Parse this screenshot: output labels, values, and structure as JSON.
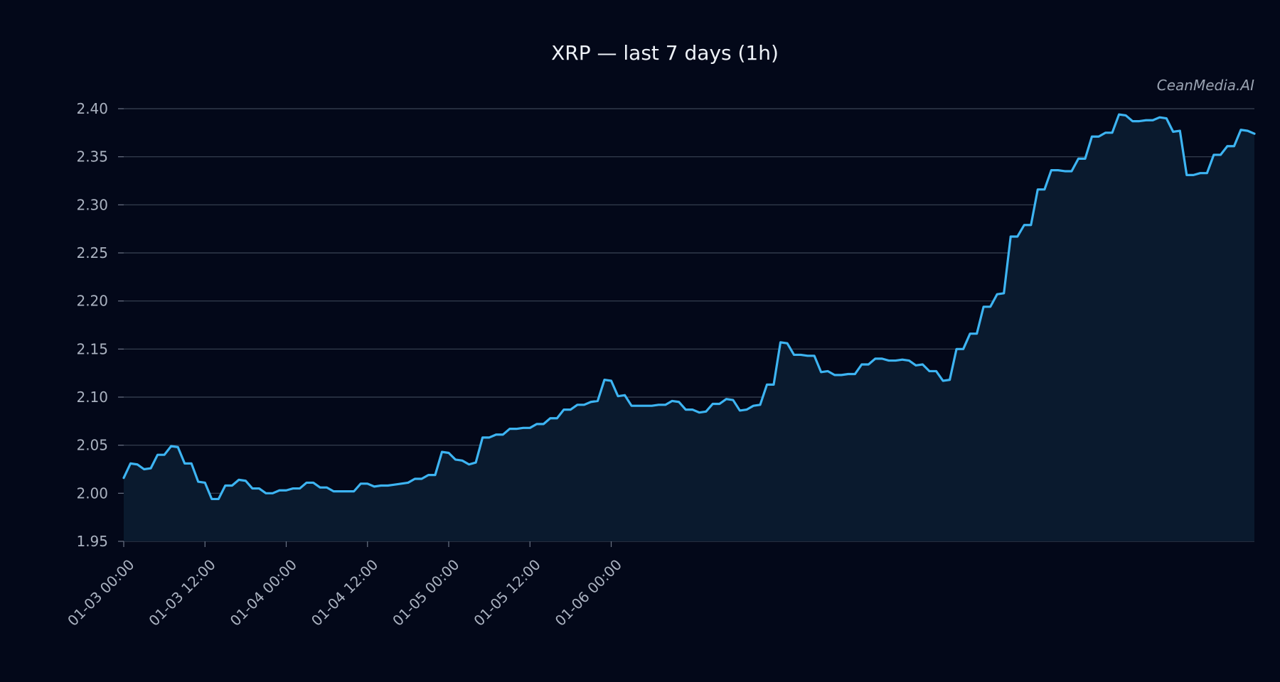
{
  "chart_data": {
    "type": "area",
    "title": "XRP — last 7 days (1h)",
    "watermark": "CeanMedia.AI",
    "xlabel": "",
    "ylabel": "",
    "ylim": [
      1.95,
      2.4
    ],
    "yticks": [
      1.95,
      2.0,
      2.05,
      2.1,
      2.15,
      2.2,
      2.25,
      2.3,
      2.35,
      2.4
    ],
    "ytick_labels": [
      "1.95",
      "2.00",
      "2.05",
      "2.10",
      "2.15",
      "2.20",
      "2.25",
      "2.30",
      "2.35",
      "2.40"
    ],
    "x_start": "01-03 00:00",
    "x_interval_hours": 1,
    "xticks": [
      "01-03 00:00",
      "01-03 12:00",
      "01-04 00:00",
      "01-04 12:00",
      "01-05 00:00",
      "01-05 12:00",
      "01-06 00:00"
    ],
    "grid": true,
    "colors": {
      "line": "#3db4f2",
      "fill": "#0a1a2e",
      "background": "#030819"
    },
    "series": [
      {
        "values": [
          2.016,
          2.031,
          2.03,
          2.025,
          2.026,
          2.04,
          2.04,
          2.049,
          2.048,
          2.031,
          2.031,
          2.012,
          2.011,
          1.994,
          1.994,
          2.008,
          2.008,
          2.014,
          2.013,
          2.005,
          2.005,
          2.0,
          2.0,
          2.003,
          2.003,
          2.005,
          2.005,
          2.011,
          2.011,
          2.006,
          2.006,
          2.002,
          2.002,
          2.002,
          2.002,
          2.01,
          2.01,
          2.007,
          2.008,
          2.008,
          2.009,
          2.01,
          2.011,
          2.015,
          2.015,
          2.019,
          2.019,
          2.043,
          2.042,
          2.035,
          2.034,
          2.03,
          2.032,
          2.058,
          2.058,
          2.061,
          2.061,
          2.067,
          2.067,
          2.068,
          2.068,
          2.072,
          2.072,
          2.078,
          2.078,
          2.087,
          2.087,
          2.092,
          2.092,
          2.095,
          2.096,
          2.118,
          2.117,
          2.101,
          2.102,
          2.091,
          2.091,
          2.091,
          2.091,
          2.092,
          2.092,
          2.096,
          2.095,
          2.087,
          2.087,
          2.084,
          2.085,
          2.093,
          2.093,
          2.098,
          2.097,
          2.086,
          2.087,
          2.091,
          2.092,
          2.113,
          2.113,
          2.157,
          2.156,
          2.144,
          2.144,
          2.143,
          2.143,
          2.126,
          2.127,
          2.123,
          2.123,
          2.124,
          2.124,
          2.134,
          2.134,
          2.14,
          2.14,
          2.138,
          2.138,
          2.139,
          2.138,
          2.133,
          2.134,
          2.127,
          2.127,
          2.117,
          2.118,
          2.15,
          2.15,
          2.166,
          2.166,
          2.194,
          2.194,
          2.207,
          2.208,
          2.267,
          2.267,
          2.279,
          2.279,
          2.316,
          2.316,
          2.336,
          2.336,
          2.335,
          2.335,
          2.348,
          2.348,
          2.371,
          2.371,
          2.375,
          2.375,
          2.394,
          2.393,
          2.387,
          2.387,
          2.388,
          2.388,
          2.391,
          2.39,
          2.376,
          2.377,
          2.331,
          2.331,
          2.333,
          2.333,
          2.352,
          2.352,
          2.361,
          2.361,
          2.378,
          2.377,
          2.374
        ]
      }
    ]
  }
}
